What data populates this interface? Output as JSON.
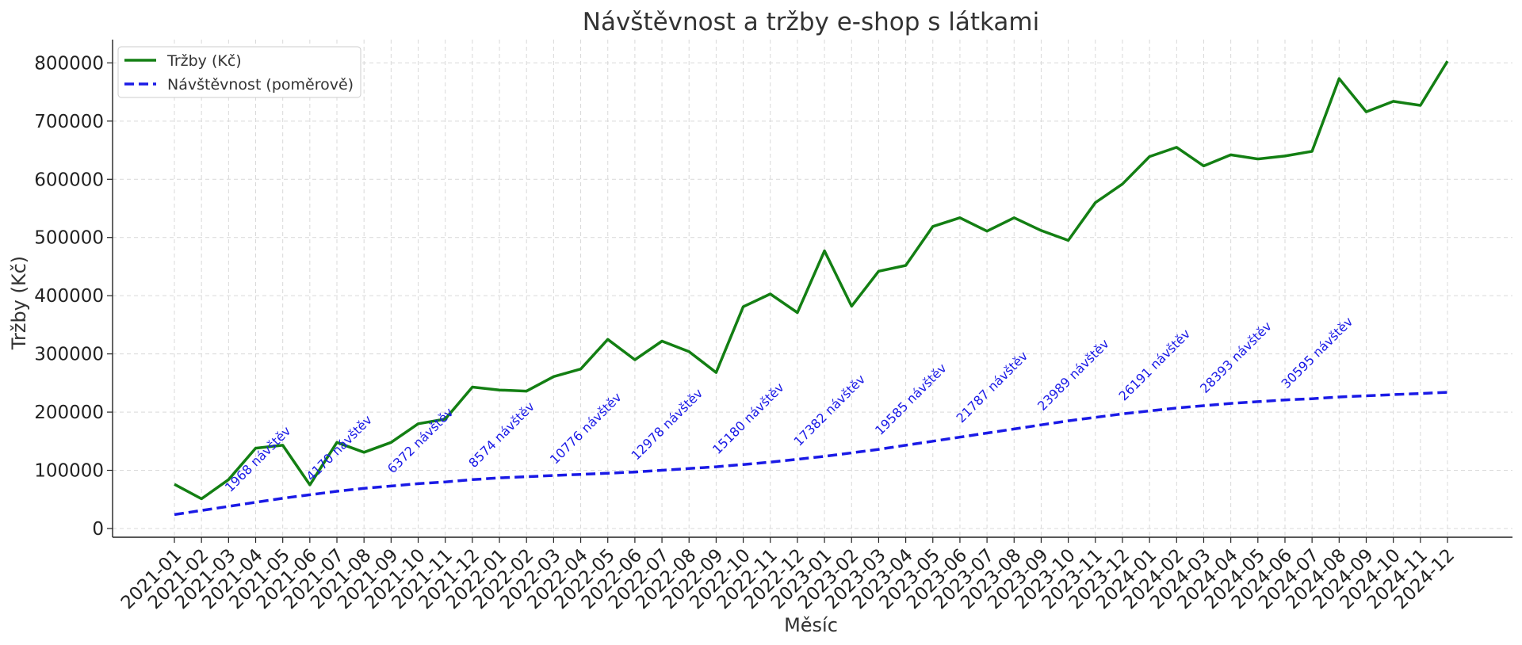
{
  "chart_data": {
    "type": "line",
    "title": "Návštěvnost a tržby e-shop s látkami",
    "xlabel": "Měsíc",
    "ylabel": "Tržby (Kč)",
    "ylim": [
      -15000,
      840000
    ],
    "yticks": [
      0,
      100000,
      200000,
      300000,
      400000,
      500000,
      600000,
      700000,
      800000
    ],
    "grid": true,
    "legend_position": "top-left",
    "categories": [
      "2021-01",
      "2021-02",
      "2021-03",
      "2021-04",
      "2021-05",
      "2021-06",
      "2021-07",
      "2021-08",
      "2021-09",
      "2021-10",
      "2021-11",
      "2021-12",
      "2022-01",
      "2022-02",
      "2022-03",
      "2022-04",
      "2022-05",
      "2022-06",
      "2022-07",
      "2022-08",
      "2022-09",
      "2022-10",
      "2022-11",
      "2022-12",
      "2023-01",
      "2023-02",
      "2023-03",
      "2023-04",
      "2023-05",
      "2023-06",
      "2023-07",
      "2023-08",
      "2023-09",
      "2023-10",
      "2023-11",
      "2023-12",
      "2024-01",
      "2024-02",
      "2024-03",
      "2024-04",
      "2024-05",
      "2024-06",
      "2024-07",
      "2024-08",
      "2024-09",
      "2024-10",
      "2024-11",
      "2024-12"
    ],
    "series": [
      {
        "name": "Tržby (Kč)",
        "color": "#137f13",
        "style": "solid",
        "values": [
          76000,
          51000,
          84000,
          138000,
          143000,
          75000,
          148000,
          131000,
          148000,
          180000,
          188000,
          243000,
          238000,
          236000,
          261000,
          274000,
          325000,
          290000,
          322000,
          304000,
          268000,
          381000,
          403000,
          371000,
          477000,
          382000,
          442000,
          452000,
          519000,
          534000,
          511000,
          534000,
          512000,
          495000,
          560000,
          592000,
          639000,
          655000,
          623000,
          642000,
          635000,
          640000,
          648000,
          773000,
          716000,
          734000,
          727000,
          803000
        ]
      },
      {
        "name": "Návštěvnost (poměrově)",
        "color": "#1a1ae6",
        "style": "dashed",
        "values": [
          24000,
          31000,
          38000,
          45000,
          52000,
          58000,
          64000,
          69000,
          73000,
          77000,
          80000,
          84000,
          87000,
          89000,
          91000,
          93000,
          95000,
          97000,
          100000,
          103000,
          106000,
          110000,
          114000,
          119000,
          124000,
          130000,
          136000,
          143000,
          150000,
          157000,
          164000,
          171000,
          178000,
          185000,
          191000,
          197000,
          202000,
          207000,
          211000,
          215000,
          218000,
          221000,
          223000,
          226000,
          228000,
          230000,
          232000,
          234000
        ]
      }
    ],
    "annotations": [
      {
        "index": 3,
        "text": "1968 návštěv"
      },
      {
        "index": 6,
        "text": "4170 návštěv"
      },
      {
        "index": 9,
        "text": "6372 návštěv"
      },
      {
        "index": 12,
        "text": "8574 návštěv"
      },
      {
        "index": 15,
        "text": "10776 návštěv"
      },
      {
        "index": 18,
        "text": "12978 návštěv"
      },
      {
        "index": 21,
        "text": "15180 návštěv"
      },
      {
        "index": 24,
        "text": "17382 návštěv"
      },
      {
        "index": 27,
        "text": "19585 návštěv"
      },
      {
        "index": 30,
        "text": "21787 návštěv"
      },
      {
        "index": 33,
        "text": "23989 návštěv"
      },
      {
        "index": 36,
        "text": "26191 návštěv"
      },
      {
        "index": 39,
        "text": "28393 návštěv"
      },
      {
        "index": 42,
        "text": "30595 návštěv"
      }
    ]
  }
}
